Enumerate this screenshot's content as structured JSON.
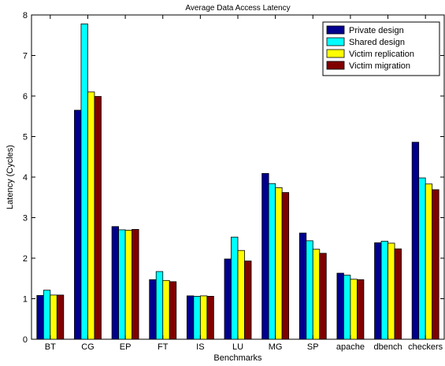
{
  "chart_data": {
    "type": "bar",
    "title": "Average Data Access Latency",
    "xlabel": "Benchmarks",
    "ylabel": "Latency (Cycles)",
    "ylim": [
      0,
      8
    ],
    "yticks": [
      0,
      1,
      2,
      3,
      4,
      5,
      6,
      7,
      8
    ],
    "grid": false,
    "legend_position": "top-right",
    "categories": [
      "BT",
      "CG",
      "EP",
      "FT",
      "IS",
      "LU",
      "MG",
      "SP",
      "apache",
      "dbench",
      "checkers"
    ],
    "series": [
      {
        "name": "Private design",
        "color": "#00008f",
        "values": [
          1.08,
          5.65,
          2.78,
          1.47,
          1.07,
          1.98,
          4.09,
          2.62,
          1.63,
          2.38,
          4.86
        ]
      },
      {
        "name": "Shared design",
        "color": "#00ffff",
        "values": [
          1.21,
          7.78,
          2.7,
          1.67,
          1.06,
          2.52,
          3.84,
          2.43,
          1.58,
          2.42,
          3.98
        ]
      },
      {
        "name": "Victim replication",
        "color": "#ffff00",
        "values": [
          1.09,
          6.1,
          2.69,
          1.45,
          1.07,
          2.19,
          3.74,
          2.22,
          1.48,
          2.37,
          3.83
        ]
      },
      {
        "name": "Victim migration",
        "color": "#800000",
        "values": [
          1.09,
          5.99,
          2.71,
          1.42,
          1.06,
          1.93,
          3.62,
          2.12,
          1.47,
          2.23,
          3.69
        ]
      }
    ]
  }
}
